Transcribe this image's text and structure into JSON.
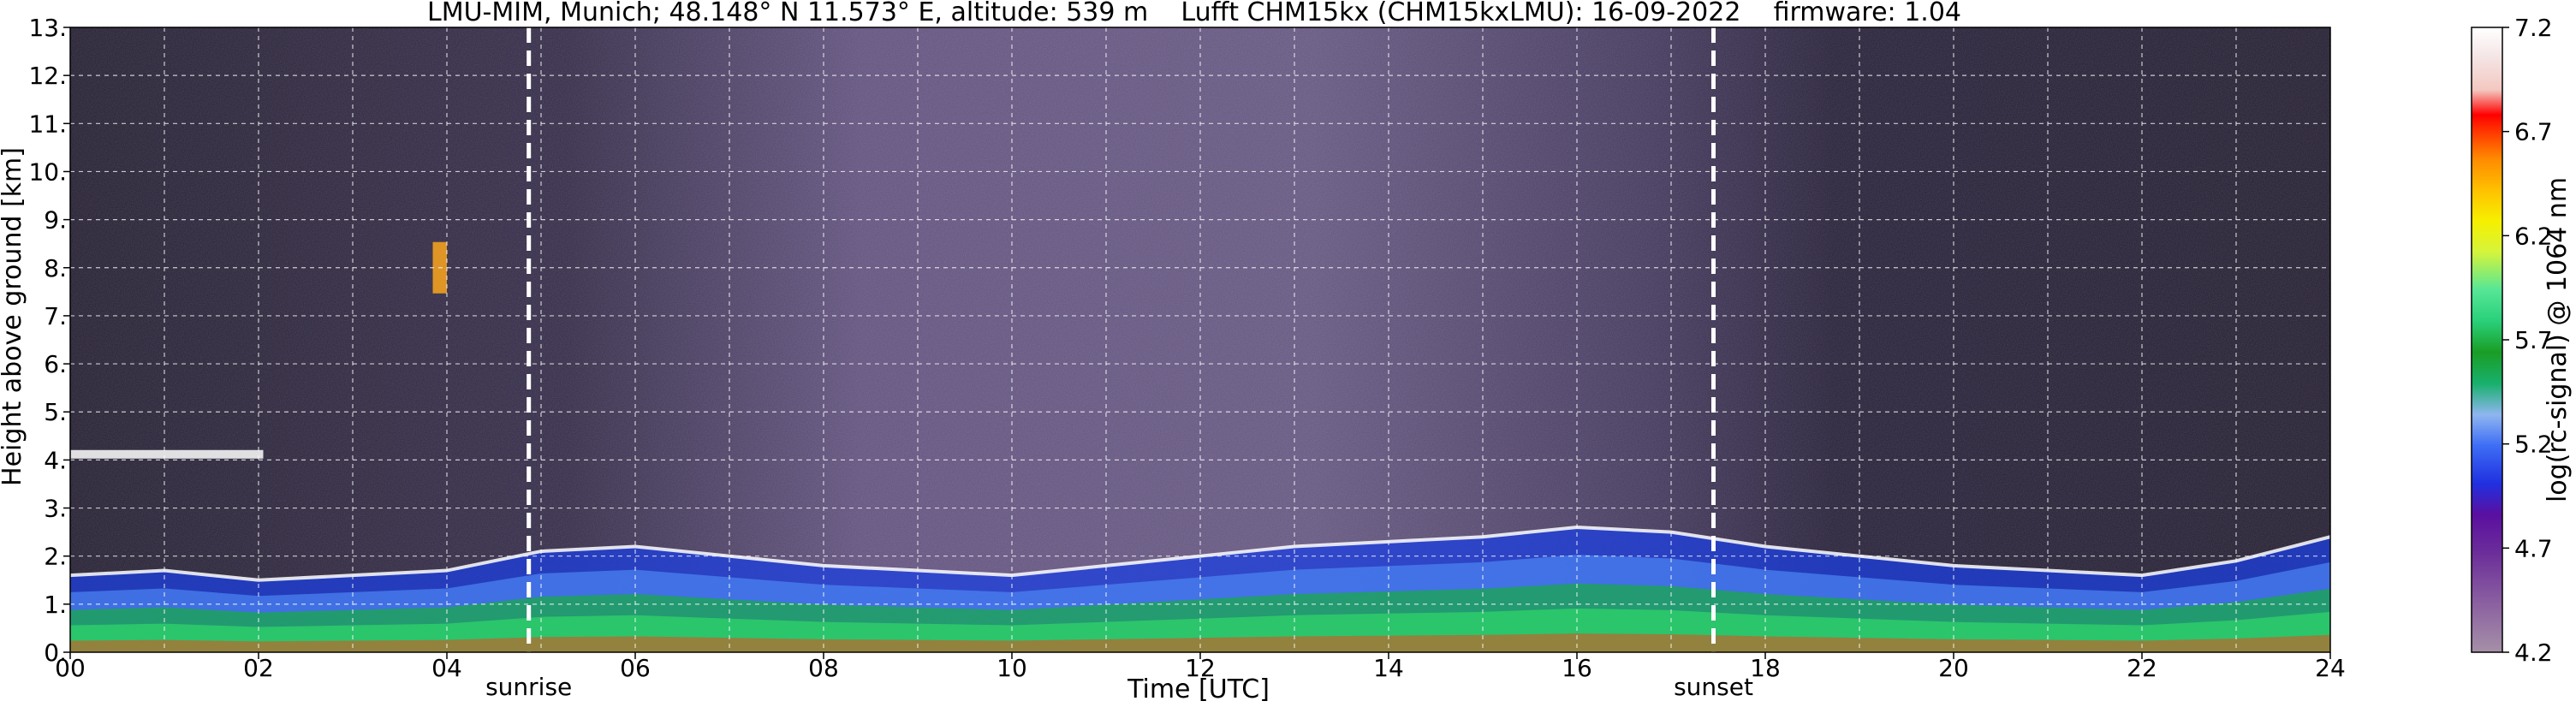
{
  "chart_data": {
    "type": "heatmap",
    "title": "LMU-MIM, Munich; 48.148° N 11.573° E, altitude: 539 m    Lufft CHM15kx (CHM15kxLMU): 16-09-2022    firmware: 1.04",
    "xlabel": "Time [UTC]",
    "ylabel": "Height above ground [km]",
    "xlim": [
      0,
      24
    ],
    "ylim": [
      0,
      13
    ],
    "x_ticks": [
      "00",
      "02",
      "04",
      "06",
      "08",
      "10",
      "12",
      "14",
      "16",
      "18",
      "20",
      "22",
      "24"
    ],
    "y_ticks": [
      "0.",
      "1.",
      "2.",
      "3.",
      "4.",
      "5.",
      "6.",
      "7.",
      "8.",
      "9.",
      "10.",
      "11.",
      "12.",
      "13."
    ],
    "grid": true,
    "annotations": [
      {
        "label": "sunrise",
        "x": 4.87
      },
      {
        "label": "sunset",
        "x": 17.45
      }
    ],
    "colorbar": {
      "label": "log(rc-signal) @ 1064 nm",
      "range": [
        4.2,
        7.2
      ],
      "ticks": [
        "7.2",
        "6.7",
        "6.2",
        "5.7",
        "5.2",
        "4.7",
        "4.2"
      ]
    },
    "layers": [
      {
        "name": "boundary-layer",
        "approx_top_km": [
          1.6,
          1.7,
          1.5,
          1.6,
          1.7,
          2.1,
          2.2,
          2.0,
          1.8,
          1.7,
          1.6,
          1.8,
          2.0,
          2.2,
          2.3,
          2.4,
          2.6,
          2.5,
          2.2,
          2.0,
          1.8,
          1.7,
          1.6,
          1.9,
          2.4
        ]
      },
      {
        "name": "cloud-layer-high",
        "approx_km": 8.0,
        "time_range": [
          3.85,
          4.0
        ]
      },
      {
        "name": "cloud-layer-mid",
        "approx_km": 4.1,
        "time_range": [
          0.0,
          2.05
        ]
      }
    ]
  },
  "colors": {
    "night_background": "#1a1428",
    "day_background": "#4a3c62",
    "grid": "#ffffff",
    "sun_marker": "#ffffff"
  }
}
